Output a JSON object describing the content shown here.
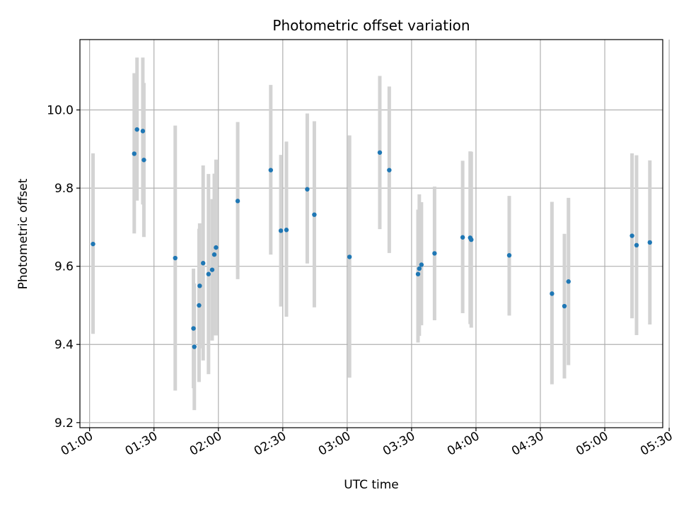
{
  "chart_data": {
    "type": "scatter",
    "title": "Photometric offset variation",
    "xlabel": "UTC time",
    "ylabel": "Photometric offset",
    "x_unit": "minutes since 00:00 UTC",
    "xlim": [
      55.5,
      327
    ],
    "ylim": [
      9.187,
      10.18
    ],
    "grid": true,
    "x_ticks": [
      {
        "value": 60,
        "label": "01:00"
      },
      {
        "value": 90,
        "label": "01:30"
      },
      {
        "value": 120,
        "label": "02:00"
      },
      {
        "value": 150,
        "label": "02:30"
      },
      {
        "value": 180,
        "label": "03:00"
      },
      {
        "value": 210,
        "label": "03:30"
      },
      {
        "value": 240,
        "label": "04:00"
      },
      {
        "value": 270,
        "label": "04:30"
      },
      {
        "value": 300,
        "label": "05:00"
      },
      {
        "value": 330,
        "label": "05:30"
      }
    ],
    "y_ticks": [
      {
        "value": 9.2,
        "label": "9.2"
      },
      {
        "value": 9.4,
        "label": "9.4"
      },
      {
        "value": 9.6,
        "label": "9.6"
      },
      {
        "value": 9.8,
        "label": "9.8"
      },
      {
        "value": 10.0,
        "label": "10.0"
      }
    ],
    "point_color": "#1f77b4",
    "errorbar_color": "#d3d3d3",
    "points": [
      {
        "x": 61.6,
        "y": 9.657,
        "lo": 9.427,
        "hi": 9.889
      },
      {
        "x": 80.8,
        "y": 9.888,
        "lo": 9.684,
        "hi": 10.094
      },
      {
        "x": 82.1,
        "y": 9.95,
        "lo": 9.768,
        "hi": 10.134
      },
      {
        "x": 84.8,
        "y": 9.946,
        "lo": 9.758,
        "hi": 10.134
      },
      {
        "x": 85.3,
        "y": 9.872,
        "lo": 9.675,
        "hi": 10.069
      },
      {
        "x": 99.9,
        "y": 9.621,
        "lo": 9.282,
        "hi": 9.96
      },
      {
        "x": 108.4,
        "y": 9.441,
        "lo": 9.288,
        "hi": 9.594
      },
      {
        "x": 108.8,
        "y": 9.394,
        "lo": 9.232,
        "hi": 9.556
      },
      {
        "x": 111.0,
        "y": 9.5,
        "lo": 9.304,
        "hi": 9.696
      },
      {
        "x": 111.3,
        "y": 9.55,
        "lo": 9.39,
        "hi": 9.71
      },
      {
        "x": 112.9,
        "y": 9.608,
        "lo": 9.359,
        "hi": 9.858
      },
      {
        "x": 115.4,
        "y": 9.58,
        "lo": 9.324,
        "hi": 9.836
      },
      {
        "x": 117.1,
        "y": 9.591,
        "lo": 9.41,
        "hi": 9.772
      },
      {
        "x": 118.1,
        "y": 9.63,
        "lo": 9.423,
        "hi": 9.837
      },
      {
        "x": 118.9,
        "y": 9.648,
        "lo": 9.423,
        "hi": 9.873
      },
      {
        "x": 129.0,
        "y": 9.767,
        "lo": 9.567,
        "hi": 9.969
      },
      {
        "x": 144.4,
        "y": 9.846,
        "lo": 9.63,
        "hi": 10.064
      },
      {
        "x": 149.1,
        "y": 9.691,
        "lo": 9.497,
        "hi": 9.885
      },
      {
        "x": 151.7,
        "y": 9.693,
        "lo": 9.471,
        "hi": 9.919
      },
      {
        "x": 161.4,
        "y": 9.797,
        "lo": 9.607,
        "hi": 9.991
      },
      {
        "x": 164.7,
        "y": 9.732,
        "lo": 9.495,
        "hi": 9.971
      },
      {
        "x": 181.1,
        "y": 9.624,
        "lo": 9.315,
        "hi": 9.935
      },
      {
        "x": 195.2,
        "y": 9.891,
        "lo": 9.695,
        "hi": 10.087
      },
      {
        "x": 199.6,
        "y": 9.846,
        "lo": 9.634,
        "hi": 10.06
      },
      {
        "x": 213.0,
        "y": 9.58,
        "lo": 9.405,
        "hi": 9.745
      },
      {
        "x": 213.6,
        "y": 9.594,
        "lo": 9.422,
        "hi": 9.784
      },
      {
        "x": 214.6,
        "y": 9.604,
        "lo": 9.449,
        "hi": 9.764
      },
      {
        "x": 220.7,
        "y": 9.633,
        "lo": 9.462,
        "hi": 9.804
      },
      {
        "x": 233.8,
        "y": 9.674,
        "lo": 9.48,
        "hi": 9.87
      },
      {
        "x": 237.3,
        "y": 9.673,
        "lo": 9.452,
        "hi": 9.894
      },
      {
        "x": 237.8,
        "y": 9.668,
        "lo": 9.443,
        "hi": 9.893
      },
      {
        "x": 255.5,
        "y": 9.628,
        "lo": 9.474,
        "hi": 9.78
      },
      {
        "x": 275.4,
        "y": 9.53,
        "lo": 9.298,
        "hi": 9.765
      },
      {
        "x": 281.2,
        "y": 9.498,
        "lo": 9.313,
        "hi": 9.683
      },
      {
        "x": 283.1,
        "y": 9.561,
        "lo": 9.347,
        "hi": 9.775
      },
      {
        "x": 312.7,
        "y": 9.678,
        "lo": 9.467,
        "hi": 9.889
      },
      {
        "x": 314.8,
        "y": 9.654,
        "lo": 9.424,
        "hi": 9.884
      },
      {
        "x": 321.0,
        "y": 9.661,
        "lo": 9.451,
        "hi": 9.871
      }
    ]
  }
}
